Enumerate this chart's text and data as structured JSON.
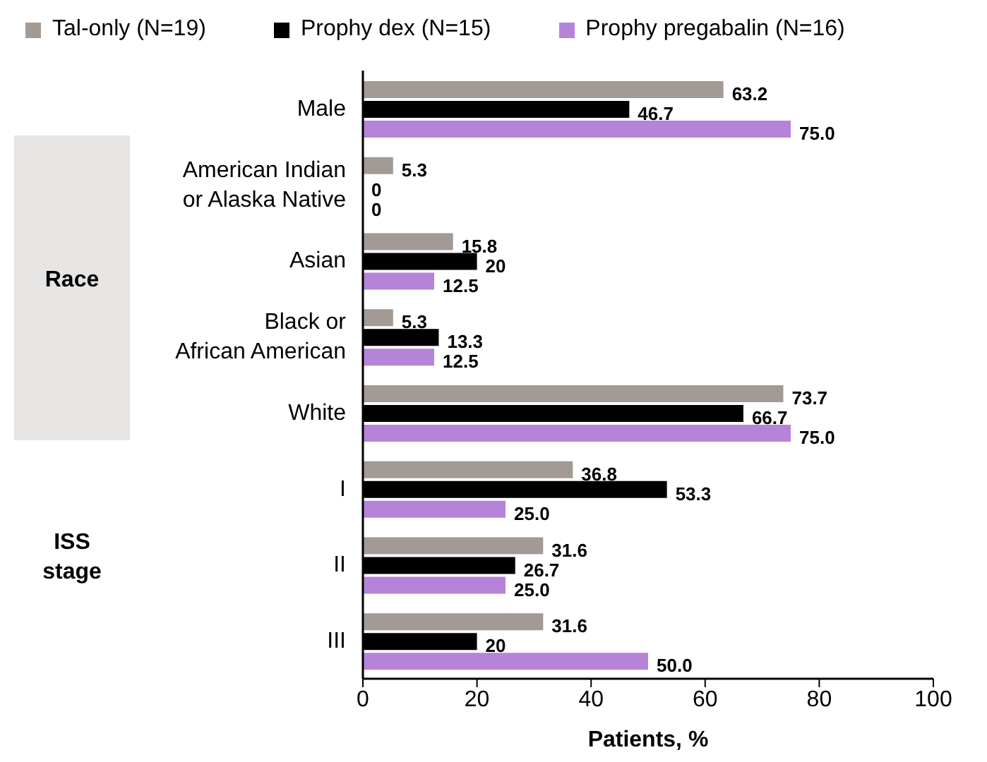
{
  "chart_data": {
    "type": "bar",
    "orientation": "horizontal",
    "xlabel": "Patients, %",
    "categories": [
      "Male",
      "American Indian\nor Alaska Native",
      "Asian",
      "Black or\nAfrican American",
      "White",
      "I",
      "II",
      "III"
    ],
    "series": [
      {
        "name": "Tal-only (N=19)",
        "color": "#a39a95",
        "values": [
          63.2,
          5.3,
          15.8,
          5.3,
          73.7,
          36.8,
          31.6,
          31.6
        ],
        "value_labels": [
          "63.2",
          "5.3",
          "15.8",
          "5.3",
          "73.7",
          "36.8",
          "31.6",
          "31.6"
        ]
      },
      {
        "name": "Prophy dex (N=15)",
        "color": "#000000",
        "values": [
          46.7,
          0,
          20,
          13.3,
          66.7,
          53.3,
          26.7,
          20
        ],
        "value_labels": [
          "46.7",
          "0",
          "20",
          "13.3",
          "66.7",
          "53.3",
          "26.7",
          "20"
        ]
      },
      {
        "name": "Prophy pregabalin (N=16)",
        "color": "#b583d8",
        "values": [
          75,
          0,
          12.5,
          12.5,
          75,
          25,
          25,
          50
        ],
        "value_labels": [
          "75.0",
          "0",
          "12.5",
          "12.5",
          "75.0",
          "25.0",
          "25.0",
          "50.0"
        ]
      }
    ],
    "xlim": [
      0,
      100
    ],
    "xticks": [
      0,
      20,
      40,
      60,
      80,
      100
    ],
    "annotations": [
      "Race",
      "ISS stage"
    ],
    "legend": "top",
    "grid": false
  }
}
